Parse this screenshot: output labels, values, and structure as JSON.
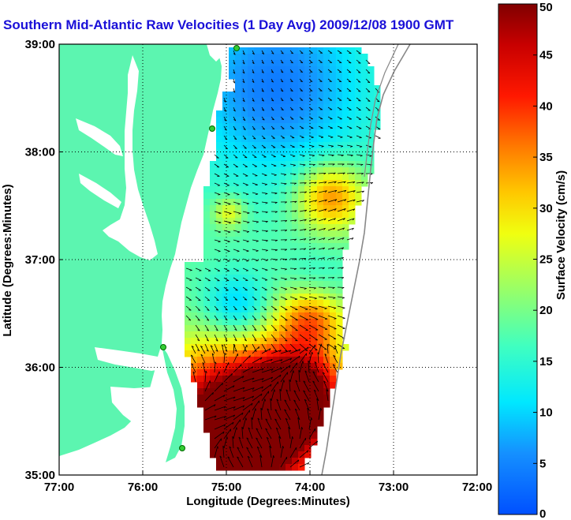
{
  "title": "Southern Mid-Atlantic Raw Velocities (1 Day Avg) 2009/12/08 1900 GMT",
  "map": {
    "xlabel": "Longitude (Degrees:Minutes)",
    "ylabel": "Latitude (Degrees:Minutes)",
    "lon_ticks": [
      "77:00",
      "76:00",
      "75:00",
      "74:00",
      "73:00",
      "72:00"
    ],
    "lat_ticks": [
      "39:00",
      "38:00",
      "37:00",
      "36:00",
      "35:00"
    ],
    "lon_range": [
      -77,
      -72
    ],
    "lat_range": [
      35,
      39
    ],
    "grid": "dotted",
    "land_color": "#5cf5b0",
    "water_color": "#ffffff"
  },
  "colorbar": {
    "label": "Surface Velocity (cm/s)",
    "range": [
      0,
      50
    ],
    "ticks": [
      "0",
      "5",
      "10",
      "15",
      "20",
      "25",
      "30",
      "35",
      "40",
      "45",
      "50"
    ]
  }
}
